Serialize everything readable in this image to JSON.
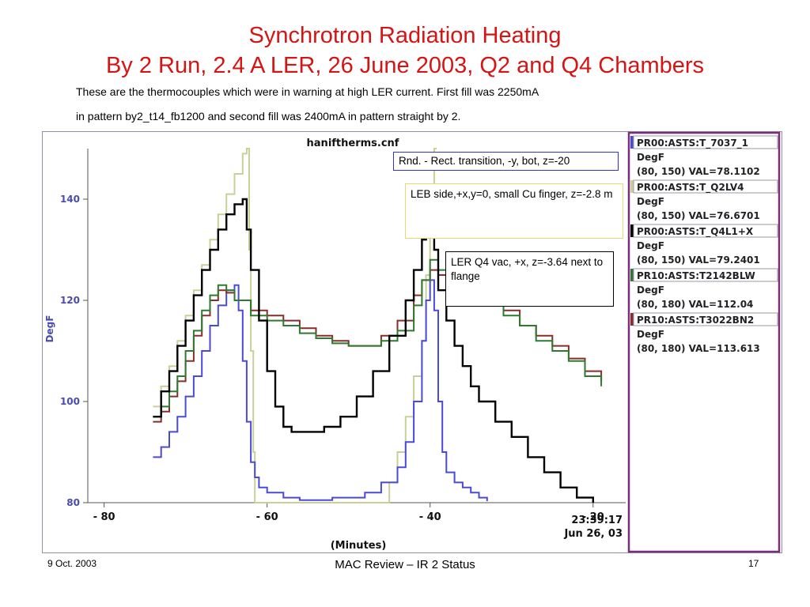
{
  "slide": {
    "title_line1": "Synchrotron Radiation Heating",
    "title_line2": "By 2 Run, 2.4 A LER,   26 June 2003, Q2 and Q4 Chambers",
    "subtitle_line1": "These are the thermocouples which were in warning at high LER current. First fill was 2250mA",
    "subtitle_line2": "in pattern by2_t14_fb1200 and second fill was 2400mA in pattern straight by 2.",
    "footer_date": "9 Oct. 2003",
    "footer_center": "MAC Review – IR 2 Status",
    "page_number": "17"
  },
  "annotations": [
    {
      "text": "Rnd. - Rect. transition, -y, bot, z=-20",
      "border_color": "#3333cc"
    },
    {
      "text": "LEB side,+x,y=0, small Cu finger, z=-2.8 m",
      "border_color": "#e8d870"
    },
    {
      "text": "LER Q4 vac, +x, z=-3.64 next to flange",
      "border_color": "#000000"
    }
  ],
  "chart_data": {
    "type": "line",
    "title": "haniftherms.cnf",
    "xlabel": "(Minutes)",
    "ylabel": "DegF",
    "xlim": [
      -82,
      -16
    ],
    "ylim": [
      80,
      150
    ],
    "x_ticks": [
      -80,
      -60,
      -40,
      -20
    ],
    "y_ticks": [
      80,
      100,
      120,
      140
    ],
    "timestamp_time": "23:39:17",
    "timestamp_date": "Jun 26, 03",
    "grid": false,
    "legend_position": "right",
    "series": [
      {
        "legend_line1": "PR00:ASTS:T_7037_1",
        "legend_line2": "DegF",
        "legend_line3": "(80, 150) VAL=78.1102",
        "color": "#4a4ad8",
        "points": [
          [
            -74,
            89
          ],
          [
            -73,
            91
          ],
          [
            -72,
            94
          ],
          [
            -71,
            97
          ],
          [
            -70,
            101
          ],
          [
            -69,
            105
          ],
          [
            -68,
            110
          ],
          [
            -67,
            115
          ],
          [
            -66,
            119
          ],
          [
            -65,
            122
          ],
          [
            -64,
            123
          ],
          [
            -63.5,
            118
          ],
          [
            -63,
            108
          ],
          [
            -62.5,
            96
          ],
          [
            -62,
            88
          ],
          [
            -61.5,
            85
          ],
          [
            -61,
            83
          ],
          [
            -60,
            82
          ],
          [
            -58,
            81
          ],
          [
            -56,
            80.5
          ],
          [
            -52,
            81
          ],
          [
            -48,
            82
          ],
          [
            -46,
            84
          ],
          [
            -44,
            87
          ],
          [
            -43,
            92
          ],
          [
            -42,
            100
          ],
          [
            -41,
            112
          ],
          [
            -40.5,
            120
          ],
          [
            -40,
            124
          ],
          [
            -39.5,
            118
          ],
          [
            -39,
            100
          ],
          [
            -38.5,
            90
          ],
          [
            -38,
            86
          ],
          [
            -37,
            84
          ],
          [
            -36,
            83
          ],
          [
            -35,
            82
          ],
          [
            -34,
            81
          ],
          [
            -33,
            80.3
          ]
        ]
      },
      {
        "legend_line1": "PR00:ASTS:T_Q2LV4",
        "legend_line2": "DegF",
        "legend_line3": "(80, 150) VAL=76.6701",
        "color": "#c8d098",
        "points": [
          [
            -74,
            99
          ],
          [
            -73,
            103
          ],
          [
            -72,
            107
          ],
          [
            -71,
            112
          ],
          [
            -70,
            117
          ],
          [
            -69,
            122
          ],
          [
            -68,
            127
          ],
          [
            -67,
            132
          ],
          [
            -66,
            137
          ],
          [
            -65,
            141
          ],
          [
            -64,
            145
          ],
          [
            -63,
            149
          ],
          [
            -62.5,
            150
          ],
          [
            -62.2,
            130
          ],
          [
            -62,
            110
          ],
          [
            -61.7,
            90
          ],
          [
            -61.5,
            80
          ],
          [
            -46,
            80
          ],
          [
            -45,
            84
          ],
          [
            -44,
            90
          ],
          [
            -43,
            97
          ],
          [
            -42,
            105
          ],
          [
            -41,
            112
          ],
          [
            -40.5,
            125
          ],
          [
            -40,
            140
          ],
          [
            -39.5,
            150
          ],
          [
            -39.2,
            150
          ]
        ]
      },
      {
        "legend_line1": "PR00:ASTS:T_Q4L1+X",
        "legend_line2": "DegF",
        "legend_line3": "(80, 150) VAL=79.2401",
        "color": "#000000",
        "points": [
          [
            -74,
            97
          ],
          [
            -73,
            102
          ],
          [
            -72,
            106
          ],
          [
            -71,
            111
          ],
          [
            -70,
            116
          ],
          [
            -69,
            121
          ],
          [
            -68,
            126
          ],
          [
            -67,
            130
          ],
          [
            -66,
            134
          ],
          [
            -65,
            137
          ],
          [
            -64,
            139
          ],
          [
            -63,
            140
          ],
          [
            -62.5,
            134
          ],
          [
            -62,
            126
          ],
          [
            -61,
            116
          ],
          [
            -60,
            106
          ],
          [
            -59,
            99
          ],
          [
            -58,
            95
          ],
          [
            -57,
            94
          ],
          [
            -55,
            94
          ],
          [
            -53,
            95
          ],
          [
            -51,
            97
          ],
          [
            -49,
            101
          ],
          [
            -47,
            106
          ],
          [
            -45,
            113
          ],
          [
            -43,
            120
          ],
          [
            -42,
            126
          ],
          [
            -41,
            132
          ],
          [
            -40.5,
            136
          ],
          [
            -40,
            138
          ],
          [
            -39.5,
            130
          ],
          [
            -39,
            122
          ],
          [
            -38,
            116
          ],
          [
            -37,
            111
          ],
          [
            -36,
            107
          ],
          [
            -35,
            103
          ],
          [
            -34,
            100
          ],
          [
            -32,
            96
          ],
          [
            -30,
            93
          ],
          [
            -28,
            89
          ],
          [
            -26,
            86
          ],
          [
            -24,
            83
          ],
          [
            -22,
            81
          ],
          [
            -20,
            80
          ]
        ]
      },
      {
        "legend_line1": "PR10:ASTS:T2142BLW",
        "legend_line2": "DegF",
        "legend_line3": "(80, 180) VAL=112.04",
        "color": "#2e7a2e",
        "points": [
          [
            -74,
            97
          ],
          [
            -73,
            99
          ],
          [
            -72,
            102
          ],
          [
            -71,
            105
          ],
          [
            -70,
            110
          ],
          [
            -69,
            114
          ],
          [
            -68,
            118
          ],
          [
            -67,
            121
          ],
          [
            -66,
            123
          ],
          [
            -65,
            122
          ],
          [
            -64,
            120
          ],
          [
            -62,
            117
          ],
          [
            -60,
            116
          ],
          [
            -58,
            115
          ],
          [
            -56,
            113.5
          ],
          [
            -54,
            112.5
          ],
          [
            -52,
            111.5
          ],
          [
            -50,
            111
          ],
          [
            -48,
            111
          ],
          [
            -46,
            112
          ],
          [
            -44,
            114
          ],
          [
            -42,
            119
          ],
          [
            -41,
            124
          ],
          [
            -40,
            128
          ],
          [
            -39,
            126
          ],
          [
            -37,
            123
          ],
          [
            -35,
            121
          ],
          [
            -33,
            119
          ],
          [
            -31,
            117
          ],
          [
            -29,
            115
          ],
          [
            -27,
            112
          ],
          [
            -25,
            110
          ],
          [
            -23,
            108
          ],
          [
            -21,
            105
          ],
          [
            -19,
            103
          ]
        ]
      },
      {
        "legend_line1": "PR10:ASTS:T3022BN2",
        "legend_line2": "DegF",
        "legend_line3": "(80, 180) VAL=113.613",
        "color": "#8a2c2c",
        "points": [
          [
            -74,
            96
          ],
          [
            -73,
            98
          ],
          [
            -72,
            101
          ],
          [
            -71,
            104
          ],
          [
            -70,
            108
          ],
          [
            -69,
            113
          ],
          [
            -68,
            117
          ],
          [
            -67,
            120
          ],
          [
            -66,
            122
          ],
          [
            -65,
            121.5
          ],
          [
            -64,
            120
          ],
          [
            -62,
            118
          ],
          [
            -60,
            117
          ],
          [
            -58,
            116
          ],
          [
            -56,
            114.5
          ],
          [
            -54,
            113
          ],
          [
            -52,
            112
          ],
          [
            -50,
            111
          ],
          [
            -48,
            111
          ],
          [
            -46,
            113
          ],
          [
            -44,
            116
          ],
          [
            -42,
            121
          ],
          [
            -41,
            124
          ],
          [
            -40,
            126
          ],
          [
            -39,
            125
          ],
          [
            -37,
            124
          ],
          [
            -35,
            122
          ],
          [
            -33,
            120
          ],
          [
            -31,
            118
          ],
          [
            -29,
            115
          ],
          [
            -27,
            113
          ],
          [
            -25,
            111
          ],
          [
            -23,
            108.5
          ],
          [
            -21,
            106
          ],
          [
            -19,
            104
          ]
        ]
      }
    ]
  }
}
